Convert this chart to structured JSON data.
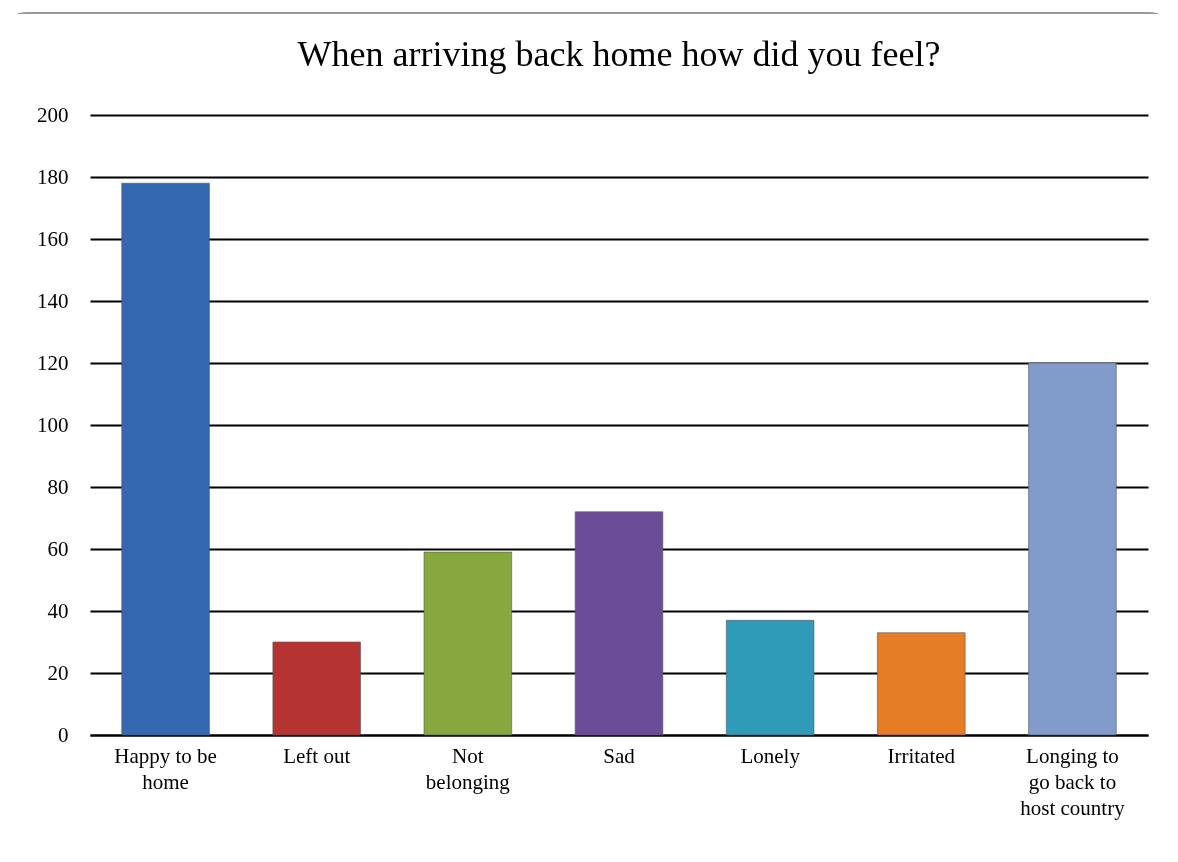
{
  "chart_data": {
    "type": "bar",
    "title": "When arriving back home how did you feel?",
    "categories": [
      "Happy to be home",
      "Left out",
      "Not belonging",
      "Sad",
      "Lonely",
      "Irritated",
      "Longing to go back to host country"
    ],
    "values": [
      178,
      30,
      59,
      72,
      37,
      33,
      120
    ],
    "colors": [
      "#3468b0",
      "#b53432",
      "#86a83c",
      "#6a4d96",
      "#2f9bb8",
      "#e57d27",
      "#819cca"
    ],
    "ylim": [
      0,
      200
    ],
    "yticks": [
      0,
      20,
      40,
      60,
      80,
      100,
      120,
      140,
      160,
      180,
      200
    ],
    "grid": "y"
  }
}
